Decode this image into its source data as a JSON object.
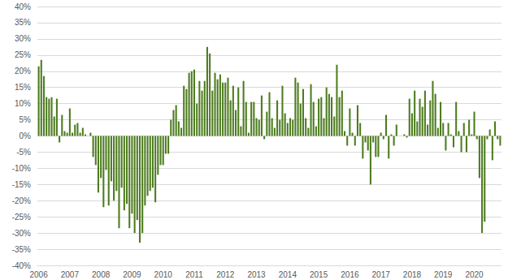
{
  "chart_data": {
    "type": "bar",
    "color": "#4d7c1f",
    "grid": true,
    "categories": [
      "2006",
      null,
      null,
      null,
      null,
      null,
      null,
      null,
      null,
      null,
      null,
      null,
      "2007",
      null,
      null,
      null,
      null,
      null,
      null,
      null,
      null,
      null,
      null,
      null,
      "2008",
      null,
      null,
      null,
      null,
      null,
      null,
      null,
      null,
      null,
      null,
      null,
      "2009",
      null,
      null,
      null,
      null,
      null,
      null,
      null,
      null,
      null,
      null,
      null,
      "2010",
      null,
      null,
      null,
      null,
      null,
      null,
      null,
      null,
      null,
      null,
      null,
      "2011",
      null,
      null,
      null,
      null,
      null,
      null,
      null,
      null,
      null,
      null,
      null,
      "2012",
      null,
      null,
      null,
      null,
      null,
      null,
      null,
      null,
      null,
      null,
      null,
      "2013",
      null,
      null,
      null,
      null,
      null,
      null,
      null,
      null,
      null,
      null,
      null,
      "2014",
      null,
      null,
      null,
      null,
      null,
      null,
      null,
      null,
      null,
      null,
      null,
      "2015",
      null,
      null,
      null,
      null,
      null,
      null,
      null,
      null,
      null,
      null,
      null,
      "2016",
      null,
      null,
      null,
      null,
      null,
      null,
      null,
      null,
      null,
      null,
      null,
      "2017",
      null,
      null,
      null,
      null,
      null,
      null,
      null,
      null,
      null,
      null,
      null,
      "2018",
      null,
      null,
      null,
      null,
      null,
      null,
      null,
      null,
      null,
      null,
      null,
      "2019",
      null,
      null,
      null,
      null,
      null,
      null,
      null,
      null,
      null,
      null,
      null,
      "2020",
      null,
      null,
      null,
      null,
      null,
      null,
      null,
      null,
      null,
      null
    ],
    "values": [
      21.5,
      23.5,
      18.5,
      12,
      11.5,
      12,
      6,
      11.5,
      -2,
      6.5,
      1.5,
      1,
      8.5,
      1,
      3.5,
      4,
      1,
      2.5,
      0.5,
      0,
      1,
      -6.5,
      -9,
      -17.5,
      -13,
      -22,
      -10.5,
      -21.5,
      -14,
      -20,
      -17,
      -28.5,
      -16,
      -23,
      -21,
      -28.5,
      -24,
      -30,
      -26,
      -33,
      -30,
      -21.5,
      -18.5,
      -17,
      -16,
      -20.5,
      -12,
      -9,
      -9,
      -5.5,
      -5.5,
      5,
      8,
      9.5,
      4.5,
      2.5,
      15.5,
      14.5,
      19.5,
      20,
      20.5,
      10,
      17,
      14,
      17,
      27.5,
      25.5,
      14,
      19.5,
      17.5,
      19,
      16.5,
      16.5,
      18,
      11,
      15.5,
      8,
      15,
      3,
      17,
      10.5,
      1,
      10.5,
      10.5,
      5.5,
      5,
      12.5,
      -1,
      7.5,
      13.5,
      5.5,
      2.5,
      11,
      5,
      15.5,
      7,
      4,
      5.5,
      5,
      18,
      16.5,
      10,
      14.5,
      5.5,
      2.5,
      16,
      10.5,
      3,
      11.5,
      12,
      5.5,
      15,
      13,
      12,
      6,
      22,
      12,
      14,
      1.5,
      -3,
      8.5,
      1,
      -3,
      9.5,
      4,
      -7,
      -2,
      -4.5,
      -15,
      -2,
      -6.5,
      -6.5,
      1,
      -1,
      6.5,
      -7,
      0.5,
      -3,
      3.5,
      0,
      0,
      0.5,
      -0.5,
      11.5,
      7,
      14,
      4.5,
      11.5,
      9,
      14,
      3.5,
      11,
      17,
      13,
      2.5,
      10.5,
      4,
      -4.5,
      4,
      0.5,
      -3.5,
      10.5,
      1.5,
      -5,
      4,
      -5,
      5,
      0.5,
      7.5,
      -1,
      -13,
      -30,
      -26.5,
      -1,
      2,
      -7.5,
      4.5,
      -1,
      -3
    ],
    "ylim": [
      -40,
      40
    ],
    "yticks": [
      {
        "value": -40,
        "label": "-40%"
      },
      {
        "value": -35,
        "label": "-35%"
      },
      {
        "value": -30,
        "label": "-30%"
      },
      {
        "value": -25,
        "label": "-25%"
      },
      {
        "value": -20,
        "label": "-20%"
      },
      {
        "value": -15,
        "label": "-15%"
      },
      {
        "value": -10,
        "label": "-10%"
      },
      {
        "value": -5,
        "label": "-5%"
      },
      {
        "value": 0,
        "label": "0%"
      },
      {
        "value": 5,
        "label": "5%"
      },
      {
        "value": 10,
        "label": "10%"
      },
      {
        "value": 15,
        "label": "15%"
      },
      {
        "value": 20,
        "label": "20%"
      },
      {
        "value": 25,
        "label": "25%"
      },
      {
        "value": 30,
        "label": "30%"
      },
      {
        "value": 35,
        "label": "35%"
      },
      {
        "value": 40,
        "label": "40%"
      }
    ]
  }
}
